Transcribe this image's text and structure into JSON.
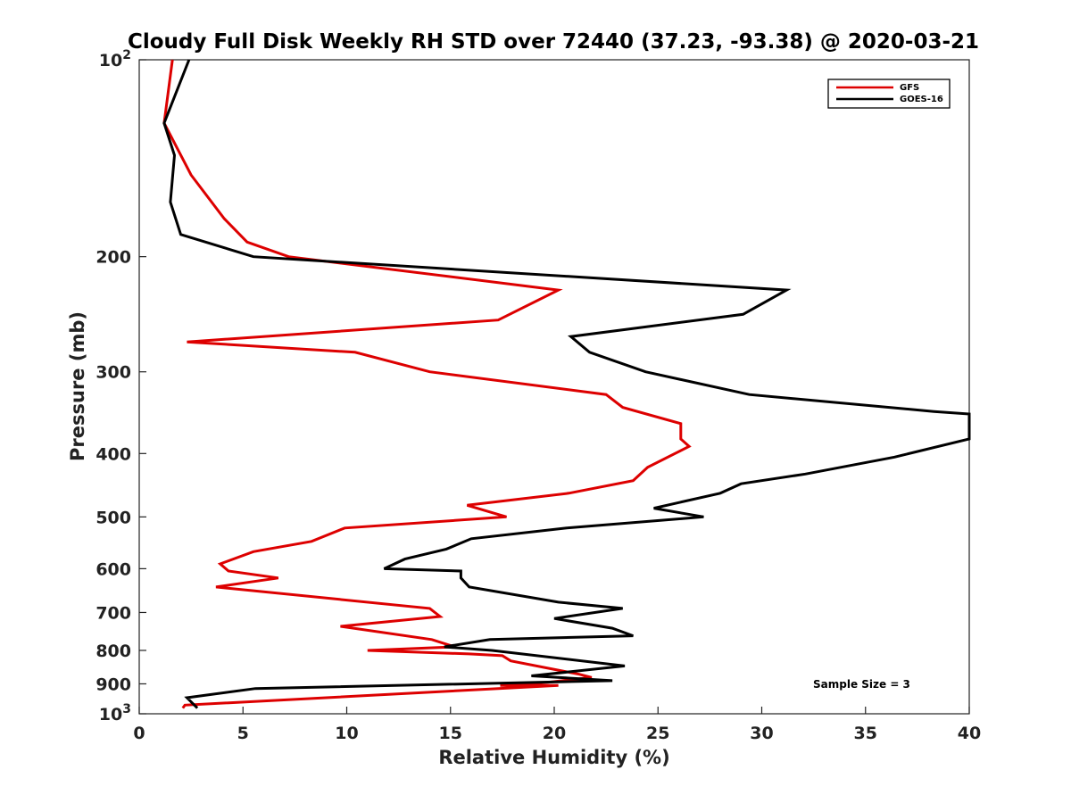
{
  "chart_data": {
    "type": "line",
    "title": "Cloudy Full Disk Weekly RH STD over 72440 (37.23, -93.38) @ 2020-03-21",
    "xlabel": "Relative Humidity (%)",
    "ylabel": "Pressure (mb)",
    "xlim": [
      0,
      40
    ],
    "ylim": [
      100,
      1000
    ],
    "y_scale": "log",
    "y_reversed": true,
    "x_ticks": [
      0,
      5,
      10,
      15,
      20,
      25,
      30,
      35,
      40
    ],
    "x_tick_labels": [
      "0",
      "5",
      "10",
      "15",
      "20",
      "25",
      "30",
      "35",
      "40"
    ],
    "y_ticks": [
      100,
      200,
      300,
      400,
      500,
      600,
      700,
      800,
      900,
      1000
    ],
    "y_tick_labels": [
      {
        "base": "10",
        "exp": "2"
      },
      {
        "base": "200"
      },
      {
        "base": "300"
      },
      {
        "base": "400"
      },
      {
        "base": "500"
      },
      {
        "base": "600"
      },
      {
        "base": "700"
      },
      {
        "base": "800"
      },
      {
        "base": "900"
      },
      {
        "base": "10",
        "exp": "3"
      }
    ],
    "grid": false,
    "legend_position": "top-right",
    "annotation": "Sample Size = 3",
    "series": [
      {
        "name": "GFS",
        "color": "#dd0000",
        "points": [
          [
            1.6,
            100
          ],
          [
            1.2,
            125
          ],
          [
            2.5,
            150
          ],
          [
            4.1,
            175
          ],
          [
            5.2,
            190
          ],
          [
            7.2,
            200
          ],
          [
            20.2,
            225
          ],
          [
            17.3,
            250
          ],
          [
            2.3,
            270
          ],
          [
            10.4,
            280
          ],
          [
            14.0,
            300
          ],
          [
            22.5,
            325
          ],
          [
            23.3,
            340
          ],
          [
            26.1,
            360
          ],
          [
            26.1,
            380
          ],
          [
            26.5,
            390
          ],
          [
            24.5,
            420
          ],
          [
            23.8,
            440
          ],
          [
            20.7,
            460
          ],
          [
            15.8,
            480
          ],
          [
            17.7,
            500
          ],
          [
            9.9,
            520
          ],
          [
            8.3,
            545
          ],
          [
            5.5,
            565
          ],
          [
            3.9,
            590
          ],
          [
            4.3,
            605
          ],
          [
            6.7,
            620
          ],
          [
            3.7,
            640
          ],
          [
            14.0,
            690
          ],
          [
            14.5,
            710
          ],
          [
            9.7,
            735
          ],
          [
            14.1,
            770
          ],
          [
            15.2,
            790
          ],
          [
            11.0,
            800
          ],
          [
            15.9,
            810
          ],
          [
            17.5,
            815
          ],
          [
            17.9,
            830
          ],
          [
            21.2,
            870
          ],
          [
            21.8,
            880
          ],
          [
            19.7,
            895
          ],
          [
            17.4,
            905
          ],
          [
            20.2,
            905
          ],
          [
            2.2,
            970
          ],
          [
            2.1,
            980
          ]
        ]
      },
      {
        "name": "GOES-16",
        "color": "#000000",
        "points": [
          [
            2.4,
            100
          ],
          [
            1.2,
            125
          ],
          [
            1.7,
            140
          ],
          [
            1.5,
            165
          ],
          [
            2.0,
            185
          ],
          [
            5.5,
            200
          ],
          [
            31.2,
            225
          ],
          [
            29.1,
            245
          ],
          [
            20.8,
            265
          ],
          [
            21.7,
            280
          ],
          [
            24.4,
            300
          ],
          [
            29.4,
            325
          ],
          [
            38.3,
            345
          ],
          [
            40.0,
            348
          ],
          [
            40.0,
            380
          ],
          [
            36.4,
            405
          ],
          [
            32.1,
            430
          ],
          [
            29.0,
            445
          ],
          [
            28.0,
            460
          ],
          [
            24.8,
            485
          ],
          [
            27.2,
            500
          ],
          [
            20.6,
            520
          ],
          [
            16.0,
            540
          ],
          [
            14.8,
            560
          ],
          [
            12.8,
            580
          ],
          [
            11.8,
            600
          ],
          [
            15.5,
            605
          ],
          [
            15.5,
            620
          ],
          [
            15.9,
            640
          ],
          [
            20.2,
            675
          ],
          [
            23.3,
            690
          ],
          [
            20.0,
            715
          ],
          [
            22.8,
            740
          ],
          [
            23.8,
            760
          ],
          [
            16.9,
            770
          ],
          [
            14.7,
            790
          ],
          [
            17.0,
            800
          ],
          [
            23.4,
            845
          ],
          [
            18.9,
            875
          ],
          [
            22.8,
            890
          ],
          [
            5.6,
            915
          ],
          [
            2.3,
            945
          ],
          [
            2.8,
            980
          ]
        ]
      }
    ]
  }
}
